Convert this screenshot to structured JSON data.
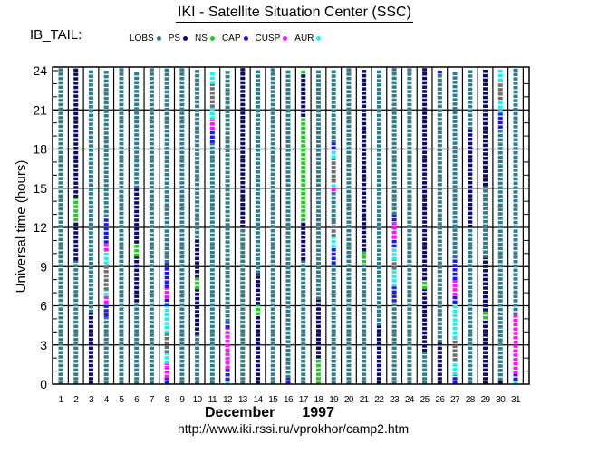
{
  "header": {
    "title": "IKI - Satellite Situation Center (SSC)",
    "subtitle": "IB_TAIL:"
  },
  "footer": {
    "month": "December",
    "year": "1997",
    "url": "http://www.iki.rssi.ru/vprokhor/camp2.htm"
  },
  "colors": {
    "LOBS": "#2e7d8c",
    "PS": "#0a0a6e",
    "NS": "#22cc22",
    "CAP": "#1a1aee",
    "CUSP": "#ff10ff",
    "AUR": "#22eeee",
    "gap": "#6e6e6e"
  },
  "chart_data": {
    "type": "scatter",
    "title": "IKI - Satellite Situation Center (SSC)",
    "subtitle": "IB_TAIL:",
    "xlabel": "December 1997",
    "ylabel": "Universal time (hours)",
    "x_ticks": [
      "1",
      "2",
      "3",
      "4",
      "5",
      "6",
      "7",
      "8",
      "9",
      "10",
      "11",
      "12",
      "13",
      "14",
      "15",
      "16",
      "17",
      "18",
      "19",
      "20",
      "21",
      "22",
      "23",
      "24",
      "25",
      "26",
      "27",
      "28",
      "29",
      "30",
      "31"
    ],
    "y_ticks": [
      0,
      3,
      6,
      9,
      12,
      15,
      18,
      21,
      24
    ],
    "ylim": [
      0,
      24
    ],
    "xlim": [
      1,
      31
    ],
    "grid": true,
    "legend": {
      "placement": "top",
      "entries": [
        {
          "name": "LOBS",
          "color_key": "LOBS"
        },
        {
          "name": "PS",
          "color_key": "PS"
        },
        {
          "name": "NS",
          "color_key": "NS"
        },
        {
          "name": "CAP",
          "color_key": "CAP"
        },
        {
          "name": "CUSP",
          "color_key": "CUSP"
        },
        {
          "name": "AUR",
          "color_key": "AUR"
        }
      ]
    },
    "days": [
      {
        "day": 1,
        "segments": [
          [
            0,
            24,
            "LOBS"
          ]
        ]
      },
      {
        "day": 2,
        "segments": [
          [
            0,
            9.5,
            "LOBS"
          ],
          [
            9.5,
            12.5,
            "PS"
          ],
          [
            12.5,
            14.3,
            "NS"
          ],
          [
            14.3,
            24,
            "PS"
          ]
        ]
      },
      {
        "day": 3,
        "segments": [
          [
            0,
            5.5,
            "PS"
          ],
          [
            5.5,
            24,
            "LOBS"
          ]
        ]
      },
      {
        "day": 4,
        "segments": [
          [
            0,
            5.2,
            "LOBS"
          ],
          [
            5.2,
            6.2,
            "CAP"
          ],
          [
            6.2,
            6.8,
            "CUSP"
          ],
          [
            6.8,
            7.2,
            "AUR"
          ],
          [
            7.2,
            9.2,
            "gap"
          ],
          [
            9.2,
            10.2,
            "AUR"
          ],
          [
            10.2,
            10.8,
            "CUSP"
          ],
          [
            10.8,
            12.8,
            "CAP"
          ],
          [
            12.8,
            24,
            "LOBS"
          ]
        ]
      },
      {
        "day": 5,
        "segments": [
          [
            0,
            24,
            "LOBS"
          ]
        ]
      },
      {
        "day": 6,
        "segments": [
          [
            0,
            6.3,
            "LOBS"
          ],
          [
            6.3,
            9.8,
            "PS"
          ],
          [
            9.8,
            10.8,
            "NS"
          ],
          [
            10.8,
            15,
            "PS"
          ],
          [
            15,
            24,
            "LOBS"
          ]
        ]
      },
      {
        "day": 7,
        "segments": [
          [
            0,
            24,
            "LOBS"
          ]
        ]
      },
      {
        "day": 8,
        "segments": [
          [
            0,
            0.5,
            "CAP"
          ],
          [
            0.5,
            1.6,
            "CUSP"
          ],
          [
            1.6,
            2.4,
            "AUR"
          ],
          [
            2.4,
            3.9,
            "gap"
          ],
          [
            3.9,
            6,
            "AUR"
          ],
          [
            6,
            6.6,
            "CAP"
          ],
          [
            6.6,
            7.4,
            "CUSP"
          ],
          [
            7.4,
            9.3,
            "CAP"
          ],
          [
            9.3,
            24,
            "LOBS"
          ]
        ]
      },
      {
        "day": 9,
        "segments": [
          [
            0,
            24,
            "LOBS"
          ]
        ]
      },
      {
        "day": 10,
        "segments": [
          [
            0,
            3.8,
            "LOBS"
          ],
          [
            3.8,
            7.3,
            "PS"
          ],
          [
            7.3,
            8.2,
            "NS"
          ],
          [
            8.2,
            11.2,
            "PS"
          ],
          [
            11.2,
            24,
            "LOBS"
          ]
        ]
      },
      {
        "day": 11,
        "segments": [
          [
            0,
            18.5,
            "LOBS"
          ],
          [
            18.5,
            19.5,
            "CAP"
          ],
          [
            19.5,
            20.3,
            "CUSP"
          ],
          [
            20.3,
            21.2,
            "AUR"
          ],
          [
            21.2,
            23,
            "gap"
          ],
          [
            23,
            24,
            "AUR"
          ]
        ]
      },
      {
        "day": 12,
        "segments": [
          [
            0,
            0.3,
            "AUR"
          ],
          [
            0.3,
            1.2,
            "CAP"
          ],
          [
            1.2,
            4.3,
            "CUSP"
          ],
          [
            4.3,
            4.8,
            "CAP"
          ],
          [
            4.8,
            24,
            "LOBS"
          ]
        ]
      },
      {
        "day": 13,
        "segments": [
          [
            0,
            12,
            "LOBS"
          ],
          [
            12,
            24,
            "PS"
          ]
        ]
      },
      {
        "day": 14,
        "segments": [
          [
            0,
            5.3,
            "PS"
          ],
          [
            5.3,
            6.1,
            "NS"
          ],
          [
            6.1,
            8.5,
            "PS"
          ],
          [
            8.5,
            24,
            "LOBS"
          ]
        ]
      },
      {
        "day": 15,
        "segments": [
          [
            0,
            24,
            "LOBS"
          ]
        ]
      },
      {
        "day": 16,
        "segments": [
          [
            0,
            0.5,
            "CAP"
          ],
          [
            0.5,
            24,
            "LOBS"
          ]
        ]
      },
      {
        "day": 17,
        "segments": [
          [
            0,
            9.5,
            "LOBS"
          ],
          [
            9.5,
            12.5,
            "PS"
          ],
          [
            12.5,
            20.5,
            "NS"
          ],
          [
            20.5,
            23.8,
            "PS"
          ],
          [
            23.8,
            24,
            "NS"
          ]
        ]
      },
      {
        "day": 18,
        "segments": [
          [
            0,
            2,
            "NS"
          ],
          [
            2,
            6.5,
            "PS"
          ],
          [
            6.5,
            24,
            "LOBS"
          ]
        ]
      },
      {
        "day": 19,
        "segments": [
          [
            0,
            9.2,
            "LOBS"
          ],
          [
            9.2,
            10.5,
            "CAP"
          ],
          [
            10.5,
            11.3,
            "AUR"
          ],
          [
            11.3,
            12.5,
            "gap"
          ],
          [
            12.5,
            14.8,
            "LOBS"
          ],
          [
            14.8,
            15.1,
            "CUSP"
          ],
          [
            15.1,
            15.5,
            "AUR"
          ],
          [
            15.5,
            17.3,
            "gap"
          ],
          [
            17.3,
            18,
            "AUR"
          ],
          [
            18,
            18.5,
            "CAP"
          ],
          [
            18.5,
            24,
            "LOBS"
          ]
        ]
      },
      {
        "day": 20,
        "segments": [
          [
            0,
            24,
            "LOBS"
          ]
        ]
      },
      {
        "day": 21,
        "segments": [
          [
            0,
            9.3,
            "LOBS"
          ],
          [
            9.3,
            10.2,
            "NS"
          ],
          [
            10.2,
            24,
            "PS"
          ]
        ]
      },
      {
        "day": 22,
        "segments": [
          [
            0,
            4.5,
            "PS"
          ],
          [
            4.5,
            24,
            "LOBS"
          ]
        ]
      },
      {
        "day": 23,
        "segments": [
          [
            0,
            6.3,
            "LOBS"
          ],
          [
            6.3,
            7.5,
            "CAP"
          ],
          [
            7.5,
            8.8,
            "AUR"
          ],
          [
            8.8,
            9.5,
            "gap"
          ],
          [
            9.5,
            10.5,
            "AUR"
          ],
          [
            10.5,
            11.2,
            "CAP"
          ],
          [
            11.2,
            12.5,
            "CUSP"
          ],
          [
            12.5,
            13,
            "CAP"
          ],
          [
            13,
            24,
            "LOBS"
          ]
        ]
      },
      {
        "day": 24,
        "segments": [
          [
            0,
            24,
            "LOBS"
          ]
        ]
      },
      {
        "day": 25,
        "segments": [
          [
            0,
            2.5,
            "LOBS"
          ],
          [
            2.5,
            7.3,
            "PS"
          ],
          [
            7.3,
            8,
            "NS"
          ],
          [
            8,
            24,
            "PS"
          ]
        ]
      },
      {
        "day": 26,
        "segments": [
          [
            0,
            3.2,
            "PS"
          ],
          [
            3.2,
            23.8,
            "LOBS"
          ],
          [
            23.8,
            24,
            "CAP"
          ]
        ]
      },
      {
        "day": 27,
        "segments": [
          [
            0,
            0.7,
            "CAP"
          ],
          [
            0.7,
            1.8,
            "AUR"
          ],
          [
            1.8,
            3.5,
            "gap"
          ],
          [
            3.5,
            6.2,
            "AUR"
          ],
          [
            6.2,
            6.8,
            "CAP"
          ],
          [
            6.8,
            8,
            "CUSP"
          ],
          [
            8,
            9.7,
            "CAP"
          ],
          [
            9.7,
            24,
            "LOBS"
          ]
        ]
      },
      {
        "day": 28,
        "segments": [
          [
            0,
            12,
            "LOBS"
          ],
          [
            12,
            19.5,
            "PS"
          ],
          [
            19.5,
            24,
            "LOBS"
          ]
        ]
      },
      {
        "day": 29,
        "segments": [
          [
            0,
            5,
            "PS"
          ],
          [
            5,
            5.6,
            "NS"
          ],
          [
            5.6,
            9.7,
            "PS"
          ],
          [
            9.7,
            15.2,
            "LOBS"
          ],
          [
            15.2,
            24,
            "PS"
          ]
        ]
      },
      {
        "day": 30,
        "segments": [
          [
            0,
            0.3,
            "PS"
          ],
          [
            0.3,
            19.6,
            "LOBS"
          ],
          [
            19.6,
            20.8,
            "CAP"
          ],
          [
            20.8,
            21.8,
            "AUR"
          ],
          [
            21.8,
            23.2,
            "gap"
          ],
          [
            23.2,
            24,
            "AUR"
          ]
        ]
      },
      {
        "day": 31,
        "segments": [
          [
            0,
            0.3,
            "AUR"
          ],
          [
            0.3,
            0.8,
            "CAP"
          ],
          [
            0.8,
            5.3,
            "CUSP"
          ],
          [
            5.3,
            24,
            "LOBS"
          ]
        ]
      }
    ]
  }
}
